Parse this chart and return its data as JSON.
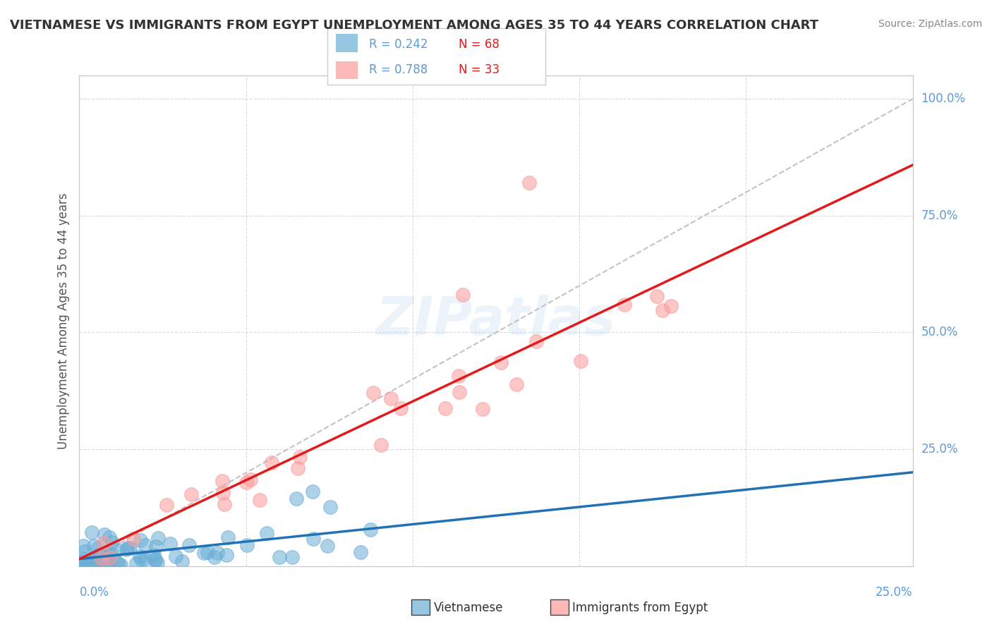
{
  "title": "VIETNAMESE VS IMMIGRANTS FROM EGYPT UNEMPLOYMENT AMONG AGES 35 TO 44 YEARS CORRELATION CHART",
  "source": "Source: ZipAtlas.com",
  "ylabel": "Unemployment Among Ages 35 to 44 years",
  "r_vietnamese": 0.242,
  "n_vietnamese": 68,
  "r_egypt": 0.788,
  "n_egypt": 33,
  "xlim": [
    0.0,
    0.25
  ],
  "ylim": [
    0.0,
    1.05
  ],
  "vietnamese_color": "#6baed6",
  "egypt_color": "#fb9a99",
  "trend_vietnamese_color": "#2171b5",
  "trend_egypt_color": "#e31a1c",
  "background_color": "#ffffff",
  "watermark": "ZIPatlas",
  "axis_label_color": "#5b9bd5",
  "title_color": "#333333",
  "source_color": "#888888",
  "ylabel_color": "#555555"
}
